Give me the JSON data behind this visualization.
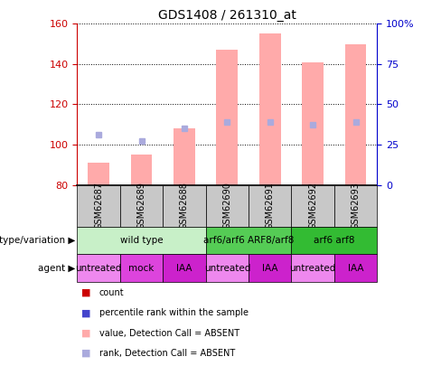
{
  "title": "GDS1408 / 261310_at",
  "samples": [
    "GSM62687",
    "GSM62689",
    "GSM62688",
    "GSM62690",
    "GSM62691",
    "GSM62692",
    "GSM62693"
  ],
  "pink_bar_values": [
    91,
    95,
    108,
    147,
    155,
    141,
    150
  ],
  "blue_square_values": [
    105,
    102,
    108,
    111,
    111,
    110,
    111
  ],
  "ymin": 80,
  "ymax": 160,
  "yright_min": 0,
  "yright_max": 100,
  "yticks_left": [
    80,
    100,
    120,
    140,
    160
  ],
  "yticks_right": [
    0,
    25,
    50,
    75,
    100
  ],
  "ytick_labels_right": [
    "0",
    "25",
    "50",
    "75",
    "100%"
  ],
  "genotype_groups": [
    {
      "label": "wild type",
      "start": 0,
      "end": 3,
      "color": "#c8f0c8"
    },
    {
      "label": "arf6/arf6 ARF8/arf8",
      "start": 3,
      "end": 5,
      "color": "#55cc55"
    },
    {
      "label": "arf6 arf8",
      "start": 5,
      "end": 7,
      "color": "#33bb33"
    }
  ],
  "agent_groups": [
    {
      "label": "untreated",
      "start": 0,
      "end": 1,
      "color": "#ee88ee"
    },
    {
      "label": "mock",
      "start": 1,
      "end": 2,
      "color": "#dd44dd"
    },
    {
      "label": "IAA",
      "start": 2,
      "end": 3,
      "color": "#cc22cc"
    },
    {
      "label": "untreated",
      "start": 3,
      "end": 4,
      "color": "#ee88ee"
    },
    {
      "label": "IAA",
      "start": 4,
      "end": 5,
      "color": "#cc22cc"
    },
    {
      "label": "untreated",
      "start": 5,
      "end": 6,
      "color": "#ee88ee"
    },
    {
      "label": "IAA",
      "start": 6,
      "end": 7,
      "color": "#cc22cc"
    }
  ],
  "legend_colors": [
    "#cc0000",
    "#4444cc",
    "#ffaaaa",
    "#aaaadd"
  ],
  "legend_labels": [
    "count",
    "percentile rank within the sample",
    "value, Detection Call = ABSENT",
    "rank, Detection Call = ABSENT"
  ],
  "pink_bar_color": "#ffaaaa",
  "blue_square_color": "#aaaadd",
  "left_axis_color": "#cc0000",
  "right_axis_color": "#0000cc",
  "bar_width": 0.5,
  "sample_box_color": "#c8c8c8"
}
